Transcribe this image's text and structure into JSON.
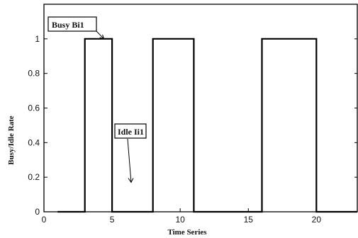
{
  "chart_data": {
    "type": "line",
    "title": "",
    "xlabel": "Time Series",
    "ylabel": "Busy/Idle Rate",
    "xlim": [
      0,
      23
    ],
    "ylim": [
      0,
      1.2
    ],
    "xticks": [
      0,
      5,
      10,
      15,
      20
    ],
    "yticks": [
      0,
      0.2,
      0.4,
      0.6,
      0.8,
      1
    ],
    "xtick_labels": [
      "0",
      "5",
      "10",
      "15",
      "20"
    ],
    "ytick_labels": [
      "0",
      "0.2",
      "0.4",
      "0.6",
      "0.8",
      "1"
    ],
    "grid": false,
    "series": [
      {
        "x": [
          1,
          3,
          3,
          5,
          5,
          8,
          8,
          11,
          11,
          16,
          16,
          20,
          20,
          23
        ],
        "y": [
          0,
          0,
          1,
          1,
          0,
          0,
          1,
          1,
          0,
          0,
          1,
          1,
          0,
          0
        ]
      }
    ],
    "annotations": [
      {
        "text": "Busy Bi1",
        "target": [
          4.4,
          1.0
        ]
      },
      {
        "text": "Idle Ii1",
        "target": [
          6.4,
          0.17
        ]
      }
    ]
  }
}
